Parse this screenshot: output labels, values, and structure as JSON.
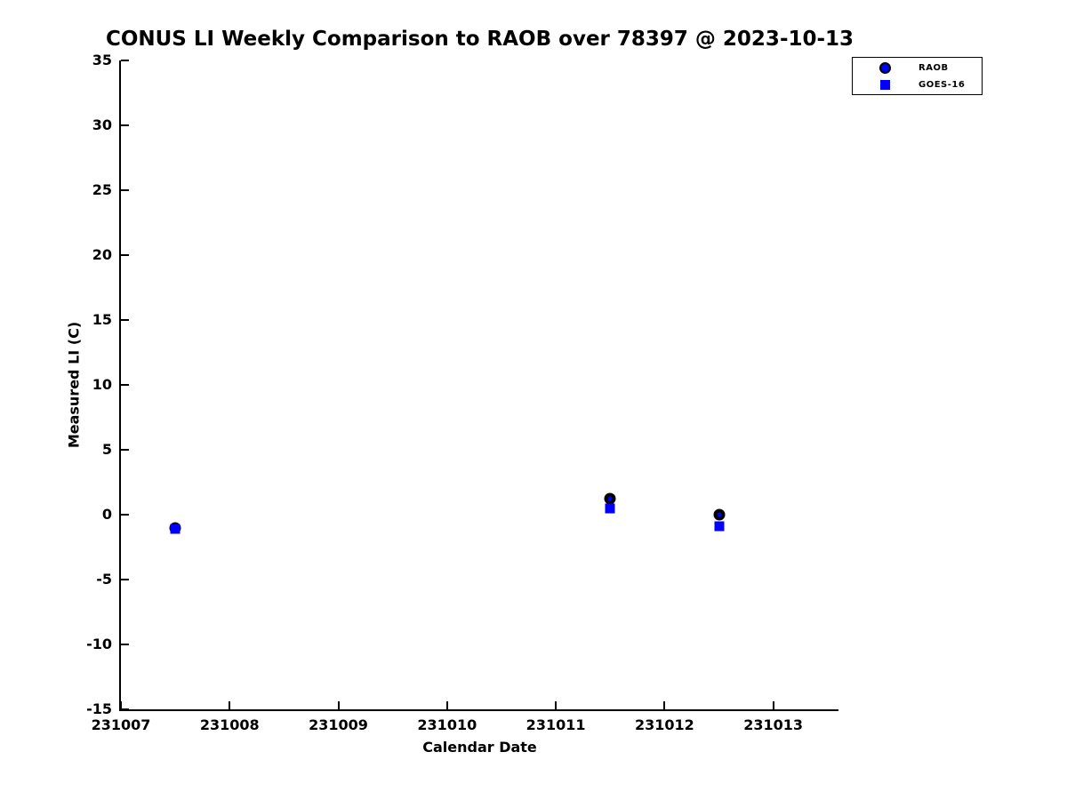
{
  "title": "CONUS LI Weekly Comparison to RAOB over 78397 @ 2023-10-13",
  "chart_data": {
    "type": "scatter",
    "title": "CONUS LI Weekly Comparison to RAOB over 78397 @ 2023-10-13",
    "xlabel": "Calendar Date",
    "ylabel": "Measured LI (C)",
    "xlim": [
      231007,
      231013.6
    ],
    "ylim": [
      -15,
      35
    ],
    "xticks": [
      231007,
      231008,
      231009,
      231010,
      231011,
      231012,
      231013
    ],
    "yticks": [
      35,
      30,
      25,
      20,
      15,
      10,
      5,
      0,
      -5,
      -10,
      -15
    ],
    "grid": false,
    "legend_position": "top-right",
    "axis_color": "#000000",
    "series": [
      {
        "name": "RAOB",
        "marker": "circle",
        "face_color": "#0000ff",
        "edge_color": "#000000",
        "x": [
          231007.5,
          231011.5,
          231012.5
        ],
        "y": [
          -1.0,
          1.2,
          0.0
        ]
      },
      {
        "name": "GOES-16",
        "marker": "square",
        "face_color": "#0000ff",
        "edge_color": "#0000ff",
        "x": [
          231007.5,
          231011.5,
          231012.5
        ],
        "y": [
          -1.1,
          0.5,
          -0.9
        ]
      }
    ]
  }
}
